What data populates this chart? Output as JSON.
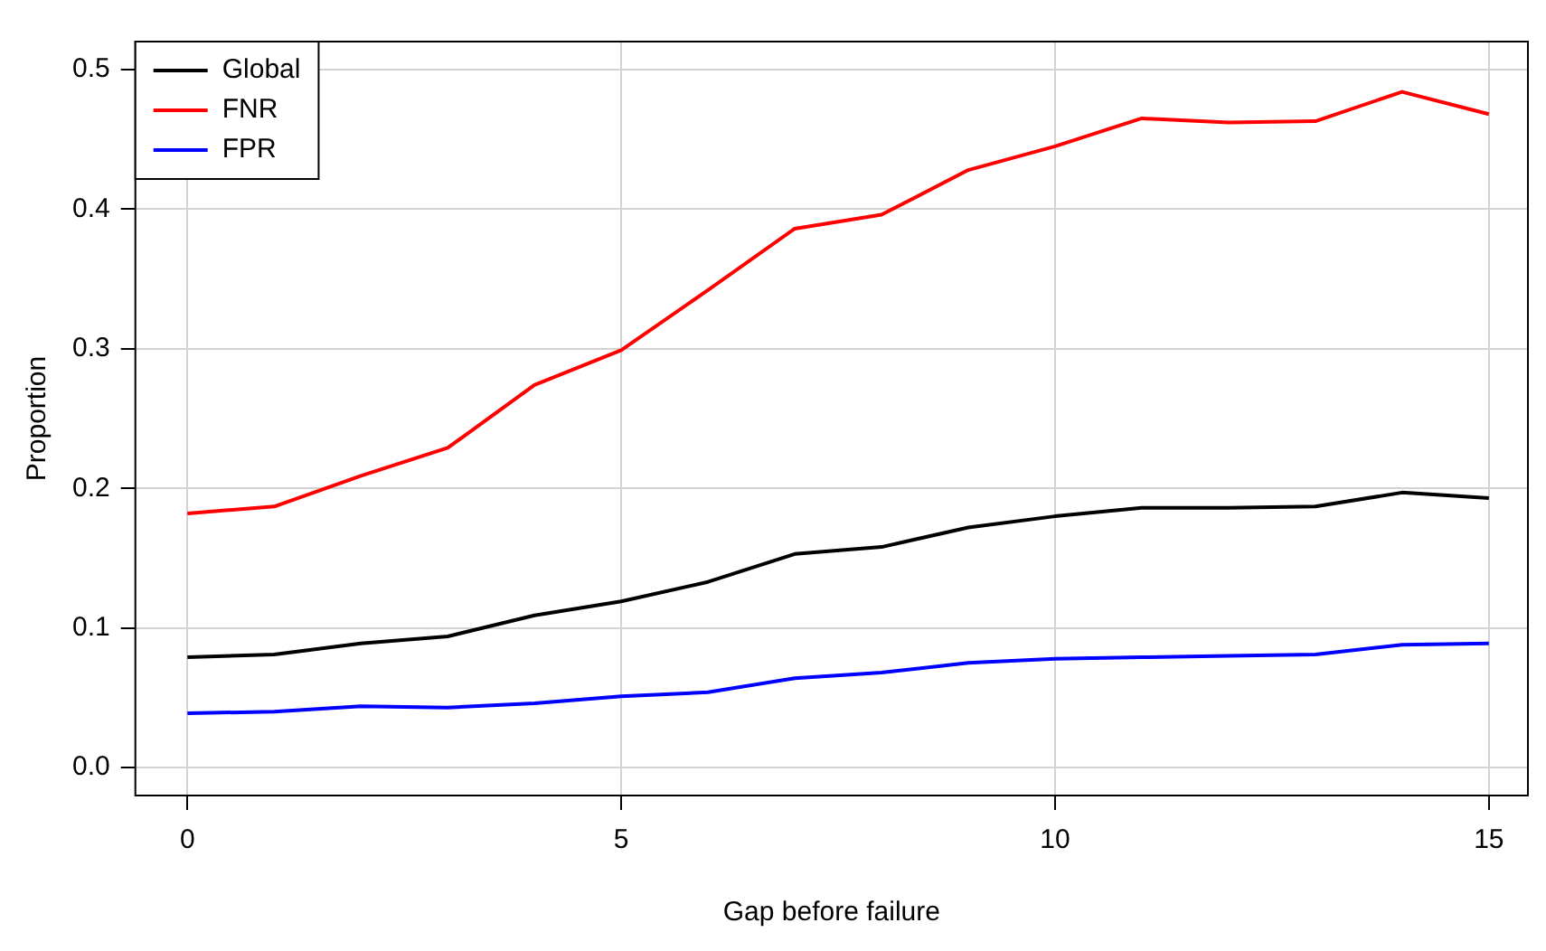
{
  "chart_data": {
    "type": "line",
    "xlabel": "Gap before failure",
    "ylabel": "Proportion",
    "x": [
      0,
      1,
      2,
      3,
      4,
      5,
      6,
      7,
      8,
      9,
      10,
      11,
      12,
      13,
      14,
      15
    ],
    "series": [
      {
        "name": "Global",
        "color": "#000000",
        "values": [
          0.079,
          0.081,
          0.089,
          0.094,
          0.109,
          0.119,
          0.133,
          0.153,
          0.158,
          0.172,
          0.18,
          0.186,
          0.186,
          0.187,
          0.197,
          0.193
        ]
      },
      {
        "name": "FNR",
        "color": "#ff0000",
        "values": [
          0.182,
          0.187,
          0.209,
          0.229,
          0.274,
          0.299,
          0.342,
          0.386,
          0.396,
          0.428,
          0.445,
          0.465,
          0.462,
          0.463,
          0.484,
          0.468
        ]
      },
      {
        "name": "FPR",
        "color": "#0000ff",
        "values": [
          0.039,
          0.04,
          0.044,
          0.043,
          0.046,
          0.051,
          0.054,
          0.064,
          0.068,
          0.075,
          0.078,
          0.079,
          0.08,
          0.081,
          0.088,
          0.089
        ]
      }
    ],
    "xlim": [
      -0.6,
      15.45
    ],
    "xticks": [
      0,
      5,
      10,
      15
    ],
    "ylim": [
      -0.02,
      0.52
    ],
    "yticks": [
      {
        "value": 0,
        "label": "0.0"
      },
      0.1,
      0.2,
      0.3,
      0.4,
      0.5
    ],
    "grid": true,
    "legend": "top left",
    "marker": "none",
    "line_style": "solid"
  }
}
